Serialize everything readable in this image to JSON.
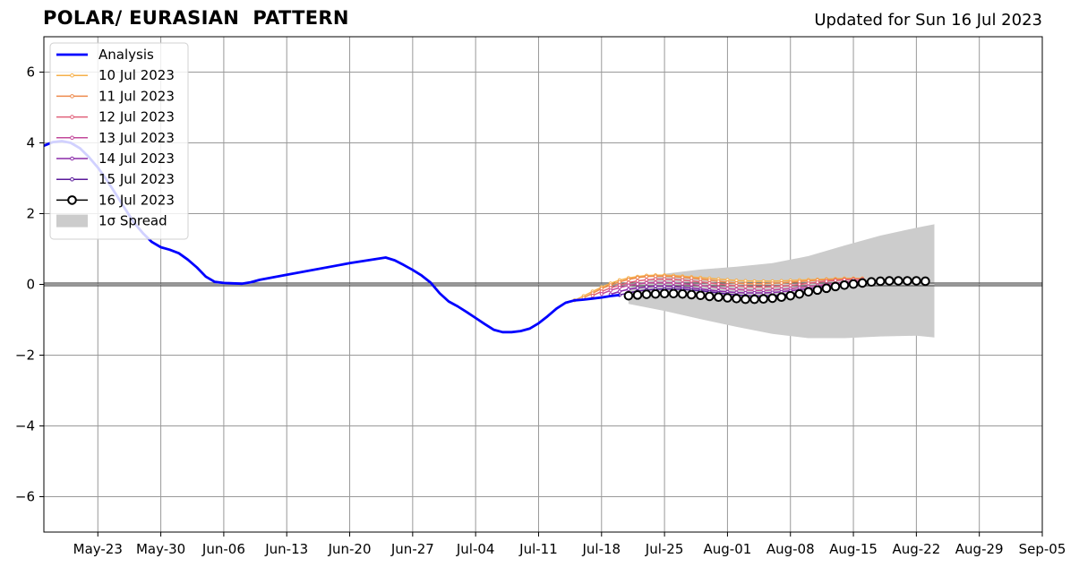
{
  "chart_data": {
    "type": "line",
    "title": "POLAR/ EURASIAN  PATTERN",
    "subtitle": "Updated for Sun 16 Jul 2023",
    "xlabel": "",
    "ylabel": "",
    "xlim": [
      "2023-05-17",
      "2023-09-05"
    ],
    "ylim": [
      -7,
      7
    ],
    "x_ticks": [
      "2023-05-23",
      "2023-05-30",
      "2023-06-06",
      "2023-06-13",
      "2023-06-20",
      "2023-06-27",
      "2023-07-04",
      "2023-07-11",
      "2023-07-18",
      "2023-07-25",
      "2023-08-01",
      "2023-08-08",
      "2023-08-15",
      "2023-08-22",
      "2023-08-29",
      "2023-09-05"
    ],
    "x_tick_labels": [
      "May-23",
      "May-30",
      "Jun-06",
      "Jun-13",
      "Jun-20",
      "Jun-27",
      "Jul-04",
      "Jul-11",
      "Jul-18",
      "Jul-25",
      "Aug-01",
      "Aug-08",
      "Aug-15",
      "Aug-22",
      "Aug-29",
      "Sep-05"
    ],
    "y_ticks": [
      -6,
      -4,
      -2,
      0,
      2,
      4,
      6
    ],
    "y_tick_labels": [
      "−6",
      "−4",
      "−2",
      "0",
      "2",
      "4",
      "6"
    ],
    "grid": true,
    "legend_position": "top-left",
    "zero_line": true,
    "analysis": {
      "name": "Analysis",
      "color": "#0000ff",
      "points": [
        [
          "2023-05-17",
          3.92
        ],
        [
          "2023-05-18",
          4.02
        ],
        [
          "2023-05-19",
          4.05
        ],
        [
          "2023-05-20",
          4.0
        ],
        [
          "2023-05-21",
          3.85
        ],
        [
          "2023-05-22",
          3.6
        ],
        [
          "2023-05-23",
          3.3
        ],
        [
          "2023-05-24",
          2.95
        ],
        [
          "2023-05-25",
          2.55
        ],
        [
          "2023-05-26",
          2.15
        ],
        [
          "2023-05-27",
          1.75
        ],
        [
          "2023-05-28",
          1.45
        ],
        [
          "2023-05-29",
          1.2
        ],
        [
          "2023-05-30",
          1.05
        ],
        [
          "2023-05-31",
          0.98
        ],
        [
          "2023-06-01",
          0.88
        ],
        [
          "2023-06-02",
          0.7
        ],
        [
          "2023-06-03",
          0.48
        ],
        [
          "2023-06-04",
          0.22
        ],
        [
          "2023-06-05",
          0.07
        ],
        [
          "2023-06-06",
          0.04
        ],
        [
          "2023-06-07",
          0.03
        ],
        [
          "2023-06-08",
          0.02
        ],
        [
          "2023-06-09",
          0.06
        ],
        [
          "2023-06-10",
          0.13
        ],
        [
          "2023-06-13",
          0.27
        ],
        [
          "2023-06-20",
          0.6
        ],
        [
          "2023-06-24",
          0.76
        ],
        [
          "2023-06-25",
          0.68
        ],
        [
          "2023-06-26",
          0.55
        ],
        [
          "2023-06-27",
          0.41
        ],
        [
          "2023-06-28",
          0.25
        ],
        [
          "2023-06-29",
          0.05
        ],
        [
          "2023-06-30",
          -0.25
        ],
        [
          "2023-07-01",
          -0.48
        ],
        [
          "2023-07-02",
          -0.62
        ],
        [
          "2023-07-03",
          -0.78
        ],
        [
          "2023-07-04",
          -0.95
        ],
        [
          "2023-07-05",
          -1.12
        ],
        [
          "2023-07-06",
          -1.28
        ],
        [
          "2023-07-07",
          -1.35
        ],
        [
          "2023-07-08",
          -1.35
        ],
        [
          "2023-07-09",
          -1.32
        ],
        [
          "2023-07-10",
          -1.25
        ],
        [
          "2023-07-11",
          -1.1
        ],
        [
          "2023-07-12",
          -0.9
        ],
        [
          "2023-07-13",
          -0.68
        ],
        [
          "2023-07-14",
          -0.52
        ],
        [
          "2023-07-15",
          -0.45
        ],
        [
          "2023-07-16",
          -0.43
        ],
        [
          "2023-07-17",
          -0.4
        ],
        [
          "2023-07-18",
          -0.37
        ],
        [
          "2023-07-19",
          -0.33
        ],
        [
          "2023-07-20",
          -0.3
        ]
      ]
    },
    "spread": {
      "name": "1σ Spread",
      "color": "#cccccc",
      "x": [
        "2023-07-21",
        "2023-07-25",
        "2023-07-29",
        "2023-08-02",
        "2023-08-06",
        "2023-08-10",
        "2023-08-14",
        "2023-08-18",
        "2023-08-22",
        "2023-08-24"
      ],
      "upper": [
        -0.1,
        0.3,
        0.42,
        0.5,
        0.6,
        0.8,
        1.1,
        1.38,
        1.6,
        1.7
      ],
      "lower": [
        -0.55,
        -0.75,
        -0.98,
        -1.2,
        -1.4,
        -1.52,
        -1.52,
        -1.47,
        -1.45,
        -1.5
      ]
    },
    "series": [
      {
        "name": "10 Jul 2023",
        "color": "#f6b04a",
        "start": "2023-07-15",
        "marker": "small",
        "values": [
          -0.45,
          -0.33,
          -0.2,
          -0.08,
          0.03,
          0.12,
          0.18,
          0.22,
          0.25,
          0.26,
          0.26,
          0.25,
          0.23,
          0.21,
          0.19,
          0.17,
          0.15,
          0.13,
          0.11,
          0.1,
          0.09,
          0.09,
          0.09,
          0.1,
          0.11,
          0.12,
          0.13,
          0.14,
          0.15,
          0.16,
          0.17,
          0.17,
          0.17
        ]
      },
      {
        "name": "11 Jul 2023",
        "color": "#ee8a4c",
        "start": "2023-07-16",
        "marker": "small",
        "values": [
          -0.38,
          -0.25,
          -0.12,
          -0.02,
          0.07,
          0.14,
          0.19,
          0.22,
          0.23,
          0.23,
          0.22,
          0.2,
          0.18,
          0.15,
          0.12,
          0.09,
          0.06,
          0.04,
          0.02,
          0.02,
          0.02,
          0.03,
          0.04,
          0.06,
          0.08,
          0.1,
          0.12,
          0.13,
          0.14,
          0.15,
          0.16,
          0.16
        ]
      },
      {
        "name": "12 Jul 2023",
        "color": "#e0607a",
        "start": "2023-07-17",
        "marker": "small",
        "values": [
          -0.32,
          -0.2,
          -0.1,
          -0.02,
          0.05,
          0.1,
          0.13,
          0.15,
          0.15,
          0.14,
          0.12,
          0.1,
          0.07,
          0.04,
          0.01,
          -0.02,
          -0.04,
          -0.06,
          -0.07,
          -0.07,
          -0.06,
          -0.05,
          -0.03,
          0.0,
          0.03,
          0.06,
          0.09,
          0.11,
          0.13,
          0.14,
          0.15
        ]
      },
      {
        "name": "13 Jul 2023",
        "color": "#c2489a",
        "start": "2023-07-18",
        "marker": "small",
        "values": [
          -0.27,
          -0.17,
          -0.09,
          -0.03,
          0.01,
          0.04,
          0.05,
          0.05,
          0.04,
          0.02,
          0.0,
          -0.03,
          -0.06,
          -0.09,
          -0.12,
          -0.14,
          -0.16,
          -0.17,
          -0.17,
          -0.16,
          -0.14,
          -0.12,
          -0.09,
          -0.06,
          -0.03,
          0.0,
          0.03,
          0.06,
          0.08,
          0.1
        ]
      },
      {
        "name": "14 Jul 2023",
        "color": "#8a2aa8",
        "start": "2023-07-19",
        "marker": "small",
        "values": [
          -0.28,
          -0.2,
          -0.14,
          -0.1,
          -0.07,
          -0.05,
          -0.05,
          -0.06,
          -0.08,
          -0.1,
          -0.13,
          -0.16,
          -0.19,
          -0.21,
          -0.23,
          -0.24,
          -0.24,
          -0.24,
          -0.23,
          -0.21,
          -0.18,
          -0.15,
          -0.12,
          -0.08,
          -0.05,
          -0.02,
          0.01,
          0.04,
          0.06
        ]
      },
      {
        "name": "15 Jul 2023",
        "color": "#5a1a9a",
        "start": "2023-07-20",
        "marker": "small",
        "values": [
          -0.3,
          -0.24,
          -0.19,
          -0.16,
          -0.14,
          -0.13,
          -0.13,
          -0.14,
          -0.16,
          -0.18,
          -0.21,
          -0.24,
          -0.27,
          -0.3,
          -0.32,
          -0.33,
          -0.33,
          -0.32,
          -0.3,
          -0.27,
          -0.24,
          -0.2,
          -0.16,
          -0.12,
          -0.08,
          -0.04,
          0.0,
          0.03
        ]
      },
      {
        "name": "16 Jul 2023",
        "color": "#000000",
        "start": "2023-07-21",
        "marker": "circle",
        "values": [
          -0.32,
          -0.3,
          -0.28,
          -0.27,
          -0.26,
          -0.26,
          -0.27,
          -0.29,
          -0.31,
          -0.34,
          -0.36,
          -0.38,
          -0.4,
          -0.42,
          -0.42,
          -0.41,
          -0.39,
          -0.36,
          -0.32,
          -0.27,
          -0.21,
          -0.16,
          -0.11,
          -0.06,
          -0.02,
          0.01,
          0.04,
          0.07,
          0.09,
          0.1,
          0.1,
          0.1,
          0.1,
          0.09
        ]
      }
    ]
  }
}
